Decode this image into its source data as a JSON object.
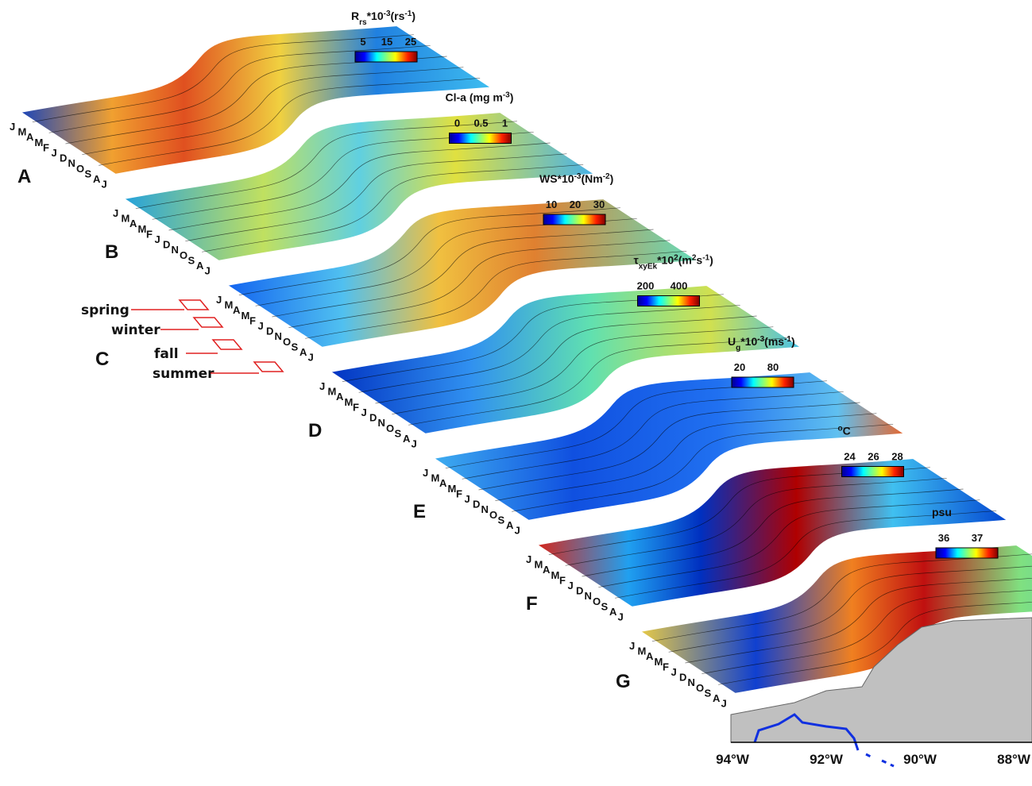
{
  "months": [
    "J",
    "M",
    "A",
    "M",
    "F",
    "J",
    "D",
    "N",
    "O",
    "S",
    "A",
    "J"
  ],
  "panels": [
    {
      "label": "A",
      "colorbar_title": [
        {
          "text": "R",
          "pos": "base"
        },
        {
          "text": "rs",
          "pos": "sub"
        },
        {
          "text": "*10",
          "pos": "base"
        },
        {
          "text": "-3",
          "pos": "sup"
        },
        {
          "text": "(rs",
          "pos": "base"
        },
        {
          "text": "-1",
          "pos": "sup"
        },
        {
          "text": ")",
          "pos": "base"
        }
      ],
      "colorbar_ticks": [
        "5",
        "15",
        "25"
      ]
    },
    {
      "label": "B",
      "colorbar_title": [
        {
          "text": "Cl-a (mg m",
          "pos": "base"
        },
        {
          "text": "-3",
          "pos": "sup"
        },
        {
          "text": ")",
          "pos": "base"
        }
      ],
      "colorbar_ticks": [
        "0",
        "0.5",
        "1"
      ]
    },
    {
      "label": "C",
      "colorbar_title": [
        {
          "text": "WS*10",
          "pos": "base"
        },
        {
          "text": "-3",
          "pos": "sup"
        },
        {
          "text": "(Nm",
          "pos": "base"
        },
        {
          "text": "-2",
          "pos": "sup"
        },
        {
          "text": ")",
          "pos": "base"
        }
      ],
      "colorbar_ticks": [
        "10",
        "20",
        "30"
      ]
    },
    {
      "label": "D",
      "colorbar_title": [
        {
          "text": "τ",
          "pos": "base"
        },
        {
          "text": "xyEk",
          "pos": "sub"
        },
        {
          "text": "*10",
          "pos": "base"
        },
        {
          "text": "2",
          "pos": "sup"
        },
        {
          "text": "(m",
          "pos": "base"
        },
        {
          "text": "2",
          "pos": "sup"
        },
        {
          "text": "s",
          "pos": "base"
        },
        {
          "text": "-1",
          "pos": "sup"
        },
        {
          "text": ")",
          "pos": "base"
        }
      ],
      "colorbar_ticks": [
        "200",
        "400"
      ]
    },
    {
      "label": "E",
      "colorbar_title": [
        {
          "text": "U",
          "pos": "base"
        },
        {
          "text": "g",
          "pos": "sub"
        },
        {
          "text": "*10",
          "pos": "base"
        },
        {
          "text": "-3",
          "pos": "sup"
        },
        {
          "text": "(ms",
          "pos": "base"
        },
        {
          "text": "-1",
          "pos": "sup"
        },
        {
          "text": ")",
          "pos": "base"
        }
      ],
      "colorbar_ticks": [
        "20",
        "80"
      ]
    },
    {
      "label": "F",
      "colorbar_title": [
        {
          "text": "o",
          "pos": "sup"
        },
        {
          "text": "C",
          "pos": "base"
        }
      ],
      "colorbar_ticks": [
        "24",
        "26",
        "28"
      ]
    },
    {
      "label": "G",
      "colorbar_title": [
        {
          "text": "psu",
          "pos": "base"
        }
      ],
      "colorbar_ticks": [
        "36",
        "37"
      ]
    }
  ],
  "seasons": [
    "spring",
    "winter",
    "fall",
    "summer"
  ],
  "longitudes": [
    "94°W",
    "92°W",
    "90°W",
    "88°W"
  ]
}
